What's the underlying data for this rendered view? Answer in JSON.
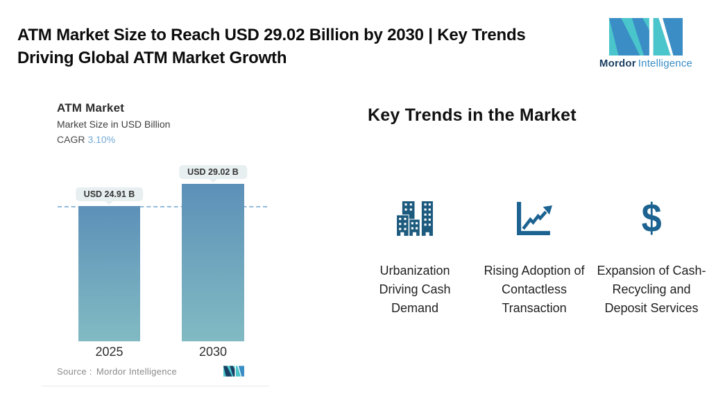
{
  "header": {
    "title_line1": "ATM Market Size to Reach USD 29.02 Billion by 2030 | Key Trends",
    "title_line2": "Driving Global ATM Market Growth",
    "brand_bold": "Mordor",
    "brand_light": "Intelligence"
  },
  "chart": {
    "title": "ATM Market",
    "subtitle": "Market Size in USD Billion",
    "cagr_label": "CAGR",
    "cagr_value": "3.10%",
    "source_label": "Source :",
    "source_value": "Mordor Intelligence",
    "bars": [
      {
        "year": "2025",
        "label": "USD 24.91 B",
        "value": 24.91
      },
      {
        "year": "2030",
        "label": "USD 29.02 B",
        "value": 29.02
      }
    ]
  },
  "chart_data": {
    "type": "bar",
    "title": "ATM Market",
    "subtitle": "Market Size in USD Billion",
    "cagr": "3.10%",
    "categories": [
      "2025",
      "2030"
    ],
    "values": [
      24.91,
      29.02
    ],
    "data_labels": [
      "USD 24.91 B",
      "USD 29.02 B"
    ],
    "ylim": [
      0,
      31
    ],
    "reference_line": 24.91,
    "grid": false,
    "legend": "none",
    "source": "Mordor Intelligence",
    "bar_gradient_top": "#5d90b8",
    "bar_gradient_bottom": "#82bac3",
    "reference_line_color": "#93bbd9"
  },
  "trends": {
    "heading": "Key Trends in the Market",
    "items": [
      {
        "icon": "buildings-icon",
        "label": "Urbanization Driving Cash Demand"
      },
      {
        "icon": "line-chart-icon",
        "label": "Rising Adoption of Contactless Transaction"
      },
      {
        "icon": "dollar-icon",
        "label": "Expansion of Cash-Recycling and Deposit Services"
      }
    ]
  },
  "colors": {
    "icon_blue": "#1d6391",
    "logo_teal": "#49c5cb",
    "logo_blue": "#3a8dc5",
    "cagr_accent": "#74aad5",
    "pill_bg": "#e8eff1"
  }
}
